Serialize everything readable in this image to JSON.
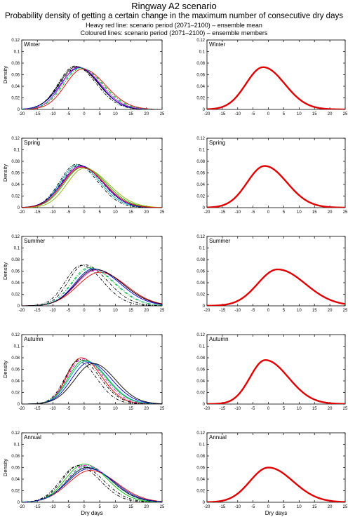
{
  "header": {
    "title": "Ringway A2 scenario",
    "subtitle": "Probability density of getting a certain change in the maximum number of consecutive dry days",
    "note_mean": "Heavy red line: scenario period (2071–2100) – ensemble mean",
    "note_members": "Coloured lines: scenario period (2071–2100) – ensemble members"
  },
  "axes": {
    "ylabel": "Density",
    "xlabel": "Dry days",
    "xlim": [
      -20,
      25
    ],
    "ylim": [
      0,
      0.12
    ],
    "xticks": [
      -20,
      -15,
      -10,
      -5,
      0,
      5,
      10,
      15,
      20,
      25
    ],
    "yticks": [
      0,
      0.02,
      0.04,
      0.06,
      0.08,
      0.1,
      0.12
    ],
    "grid": false
  },
  "colors": {
    "ensemble_mean": "#e00000",
    "members": [
      "#000000",
      "#0000cc",
      "#00bb00",
      "#d000d0",
      "#e00000",
      "#00aaaa",
      "#99aa00"
    ]
  },
  "chart_data": [
    {
      "type": "line",
      "panel": "ensemble-members",
      "season": "Winter",
      "curve_shape": "skewed-gaussian",
      "member_curves": [
        {
          "peak_x": -2.5,
          "peak_y": 0.074,
          "sd_left": 5.5,
          "sd_right": 7.0,
          "color": "#000000",
          "dash": "solid"
        },
        {
          "peak_x": -2.0,
          "peak_y": 0.073,
          "sd_left": 5.8,
          "sd_right": 6.8,
          "color": "#000000",
          "dash": "dashdot"
        },
        {
          "peak_x": -1.5,
          "peak_y": 0.072,
          "sd_left": 6.0,
          "sd_right": 6.5,
          "color": "#0000cc",
          "dash": "solid"
        },
        {
          "peak_x": -1.0,
          "peak_y": 0.071,
          "sd_left": 5.6,
          "sd_right": 7.2,
          "color": "#00bb00",
          "dash": "dashdot"
        },
        {
          "peak_x": -1.8,
          "peak_y": 0.073,
          "sd_left": 5.4,
          "sd_right": 7.0,
          "color": "#d000d0",
          "dash": "solid"
        },
        {
          "peak_x": -0.5,
          "peak_y": 0.07,
          "sd_left": 5.5,
          "sd_right": 7.3,
          "color": "#e00000",
          "dash": "solid"
        },
        {
          "peak_x": -3.0,
          "peak_y": 0.075,
          "sd_left": 5.2,
          "sd_right": 6.8,
          "color": "#000000",
          "dash": "dashdot"
        },
        {
          "peak_x": -1.2,
          "peak_y": 0.072,
          "sd_left": 5.7,
          "sd_right": 7.0,
          "color": "#00aaaa",
          "dash": "dashdot"
        }
      ]
    },
    {
      "type": "line",
      "panel": "ensemble-mean",
      "season": "Winter",
      "curve_shape": "skewed-gaussian",
      "mean_curve": {
        "peak_x": -1.7,
        "peak_y": 0.073,
        "sd_left": 5.6,
        "sd_right": 7.0,
        "color": "#e00000"
      }
    },
    {
      "type": "line",
      "panel": "ensemble-members",
      "season": "Spring",
      "curve_shape": "skewed-gaussian",
      "member_curves": [
        {
          "peak_x": -2.0,
          "peak_y": 0.074,
          "sd_left": 5.5,
          "sd_right": 7.0,
          "color": "#00aaaa",
          "dash": "solid"
        },
        {
          "peak_x": -1.5,
          "peak_y": 0.073,
          "sd_left": 5.7,
          "sd_right": 7.2,
          "color": "#000000",
          "dash": "dashdot"
        },
        {
          "peak_x": -1.0,
          "peak_y": 0.072,
          "sd_left": 6.0,
          "sd_right": 7.0,
          "color": "#0000cc",
          "dash": "solid"
        },
        {
          "peak_x": -0.5,
          "peak_y": 0.07,
          "sd_left": 5.8,
          "sd_right": 7.5,
          "color": "#00bb00",
          "dash": "solid"
        },
        {
          "peak_x": -1.2,
          "peak_y": 0.071,
          "sd_left": 5.6,
          "sd_right": 7.4,
          "color": "#d000d0",
          "dash": "solid"
        },
        {
          "peak_x": 0.0,
          "peak_y": 0.068,
          "sd_left": 5.5,
          "sd_right": 7.8,
          "color": "#99aa00",
          "dash": "solid"
        },
        {
          "peak_x": -2.5,
          "peak_y": 0.075,
          "sd_left": 5.3,
          "sd_right": 6.8,
          "color": "#000000",
          "dash": "dashdot"
        },
        {
          "peak_x": -0.8,
          "peak_y": 0.07,
          "sd_left": 5.9,
          "sd_right": 7.3,
          "color": "#e00000",
          "dash": "solid"
        }
      ]
    },
    {
      "type": "line",
      "panel": "ensemble-mean",
      "season": "Spring",
      "curve_shape": "skewed-gaussian",
      "mean_curve": {
        "peak_x": -1.2,
        "peak_y": 0.072,
        "sd_left": 5.7,
        "sd_right": 7.2,
        "color": "#e00000"
      }
    },
    {
      "type": "line",
      "panel": "ensemble-members",
      "season": "Summer",
      "curve_shape": "skewed-gaussian",
      "member_curves": [
        {
          "peak_x": 0.0,
          "peak_y": 0.071,
          "sd_left": 5.0,
          "sd_right": 7.5,
          "color": "#000000",
          "dash": "dashdot"
        },
        {
          "peak_x": 1.5,
          "peak_y": 0.066,
          "sd_left": 5.5,
          "sd_right": 8.0,
          "color": "#00bb00",
          "dash": "dashdot"
        },
        {
          "peak_x": 3.0,
          "peak_y": 0.064,
          "sd_left": 6.0,
          "sd_right": 8.5,
          "color": "#0000cc",
          "dash": "solid"
        },
        {
          "peak_x": 4.0,
          "peak_y": 0.062,
          "sd_left": 6.5,
          "sd_right": 8.5,
          "color": "#d000d0",
          "dash": "solid"
        },
        {
          "peak_x": 5.0,
          "peak_y": 0.058,
          "sd_left": 7.0,
          "sd_right": 8.5,
          "color": "#e00000",
          "dash": "solid"
        },
        {
          "peak_x": 3.5,
          "peak_y": 0.063,
          "sd_left": 6.2,
          "sd_right": 8.8,
          "color": "#000000",
          "dash": "solid"
        },
        {
          "peak_x": 2.0,
          "peak_y": 0.065,
          "sd_left": 5.8,
          "sd_right": 8.0,
          "color": "#00aaaa",
          "dash": "dashdot"
        },
        {
          "peak_x": -1.0,
          "peak_y": 0.07,
          "sd_left": 5.0,
          "sd_right": 7.0,
          "color": "#000000",
          "dash": "dashdot"
        }
      ]
    },
    {
      "type": "line",
      "panel": "ensemble-mean",
      "season": "Summer",
      "curve_shape": "skewed-gaussian",
      "mean_curve": {
        "peak_x": 3.0,
        "peak_y": 0.063,
        "sd_left": 6.5,
        "sd_right": 9.0,
        "color": "#e00000"
      }
    },
    {
      "type": "line",
      "panel": "ensemble-members",
      "season": "Autumn",
      "curve_shape": "skewed-gaussian",
      "member_curves": [
        {
          "peak_x": -2.0,
          "peak_y": 0.074,
          "sd_left": 4.0,
          "sd_right": 6.0,
          "color": "#000000",
          "dash": "dashdot"
        },
        {
          "peak_x": -1.0,
          "peak_y": 0.08,
          "sd_left": 4.5,
          "sd_right": 6.5,
          "color": "#e00000",
          "dash": "solid"
        },
        {
          "peak_x": -0.5,
          "peak_y": 0.078,
          "sd_left": 4.8,
          "sd_right": 6.8,
          "color": "#d000d0",
          "dash": "dashdot"
        },
        {
          "peak_x": 0.0,
          "peak_y": 0.076,
          "sd_left": 5.0,
          "sd_right": 7.0,
          "color": "#00bb00",
          "dash": "solid"
        },
        {
          "peak_x": 0.5,
          "peak_y": 0.074,
          "sd_left": 5.2,
          "sd_right": 7.0,
          "color": "#00aaaa",
          "dash": "solid"
        },
        {
          "peak_x": 1.5,
          "peak_y": 0.072,
          "sd_left": 5.5,
          "sd_right": 7.2,
          "color": "#0000cc",
          "dash": "solid"
        },
        {
          "peak_x": 3.0,
          "peak_y": 0.07,
          "sd_left": 6.0,
          "sd_right": 7.0,
          "color": "#000000",
          "dash": "solid"
        },
        {
          "peak_x": -1.5,
          "peak_y": 0.077,
          "sd_left": 4.5,
          "sd_right": 6.5,
          "color": "#000000",
          "dash": "dashdot"
        }
      ]
    },
    {
      "type": "line",
      "panel": "ensemble-mean",
      "season": "Autumn",
      "curve_shape": "skewed-gaussian",
      "mean_curve": {
        "peak_x": -1.0,
        "peak_y": 0.076,
        "sd_left": 5.0,
        "sd_right": 7.5,
        "color": "#e00000"
      }
    },
    {
      "type": "line",
      "panel": "ensemble-members",
      "season": "Annual",
      "curve_shape": "skewed-gaussian",
      "member_curves": [
        {
          "peak_x": -1.5,
          "peak_y": 0.064,
          "sd_left": 5.5,
          "sd_right": 7.5,
          "color": "#000000",
          "dash": "dashdot"
        },
        {
          "peak_x": 0.0,
          "peak_y": 0.066,
          "sd_left": 6.0,
          "sd_right": 7.5,
          "color": "#00bb00",
          "dash": "solid"
        },
        {
          "peak_x": 0.5,
          "peak_y": 0.064,
          "sd_left": 6.0,
          "sd_right": 8.0,
          "color": "#d000d0",
          "dash": "dashdot"
        },
        {
          "peak_x": 1.0,
          "peak_y": 0.06,
          "sd_left": 6.5,
          "sd_right": 8.0,
          "color": "#000000",
          "dash": "solid"
        },
        {
          "peak_x": 2.0,
          "peak_y": 0.055,
          "sd_left": 7.0,
          "sd_right": 8.5,
          "color": "#e00000",
          "dash": "solid"
        },
        {
          "peak_x": 1.5,
          "peak_y": 0.058,
          "sd_left": 6.8,
          "sd_right": 8.2,
          "color": "#0000cc",
          "dash": "solid"
        },
        {
          "peak_x": -2.0,
          "peak_y": 0.063,
          "sd_left": 5.5,
          "sd_right": 7.0,
          "color": "#000000",
          "dash": "dashdot"
        },
        {
          "peak_x": 0.8,
          "peak_y": 0.062,
          "sd_left": 6.2,
          "sd_right": 7.8,
          "color": "#00aaaa",
          "dash": "dashdot"
        }
      ]
    },
    {
      "type": "line",
      "panel": "ensemble-mean",
      "season": "Annual",
      "curve_shape": "skewed-gaussian",
      "mean_curve": {
        "peak_x": 0.0,
        "peak_y": 0.06,
        "sd_left": 6.0,
        "sd_right": 8.0,
        "color": "#e00000"
      }
    }
  ]
}
